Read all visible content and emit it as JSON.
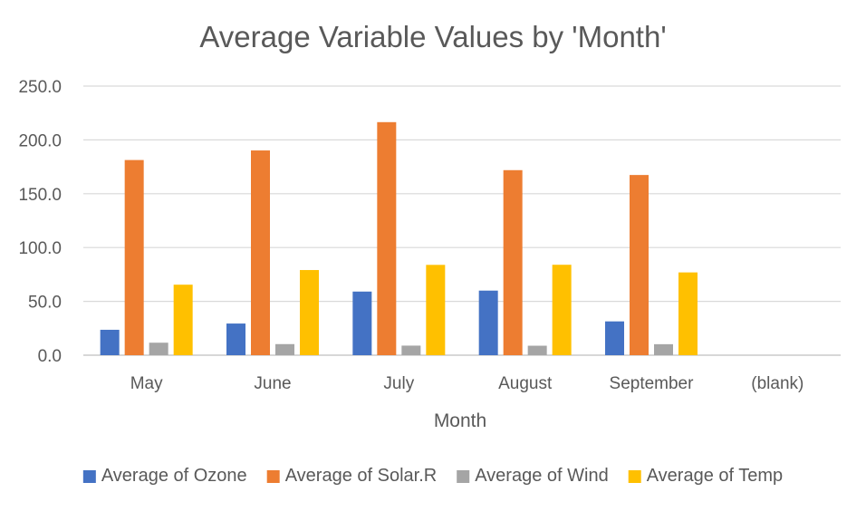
{
  "chart_data": {
    "type": "bar",
    "title": "Average Variable Values by 'Month'",
    "xlabel": "Month",
    "ylabel": "",
    "categories": [
      "May",
      "June",
      "July",
      "August",
      "September",
      "(blank)"
    ],
    "series": [
      {
        "name": "Average of Ozone",
        "color": "#4472C4",
        "values": [
          23.6,
          29.4,
          59.1,
          60.0,
          31.4,
          null
        ]
      },
      {
        "name": "Average of Solar.R",
        "color": "#ED7D31",
        "values": [
          181.3,
          190.2,
          216.5,
          171.9,
          167.4,
          null
        ]
      },
      {
        "name": "Average of Wind",
        "color": "#A5A5A5",
        "values": [
          11.6,
          10.3,
          8.9,
          8.8,
          10.2,
          null
        ]
      },
      {
        "name": "Average of Temp",
        "color": "#FFC000",
        "values": [
          65.5,
          79.1,
          83.9,
          84.0,
          76.9,
          null
        ]
      }
    ],
    "ylim": [
      0,
      250
    ],
    "yticks": [
      "0.0",
      "50.0",
      "100.0",
      "150.0",
      "200.0",
      "250.0"
    ],
    "ytick_values": [
      0,
      50,
      100,
      150,
      200,
      250
    ],
    "grid": true,
    "legend_position": "bottom"
  }
}
